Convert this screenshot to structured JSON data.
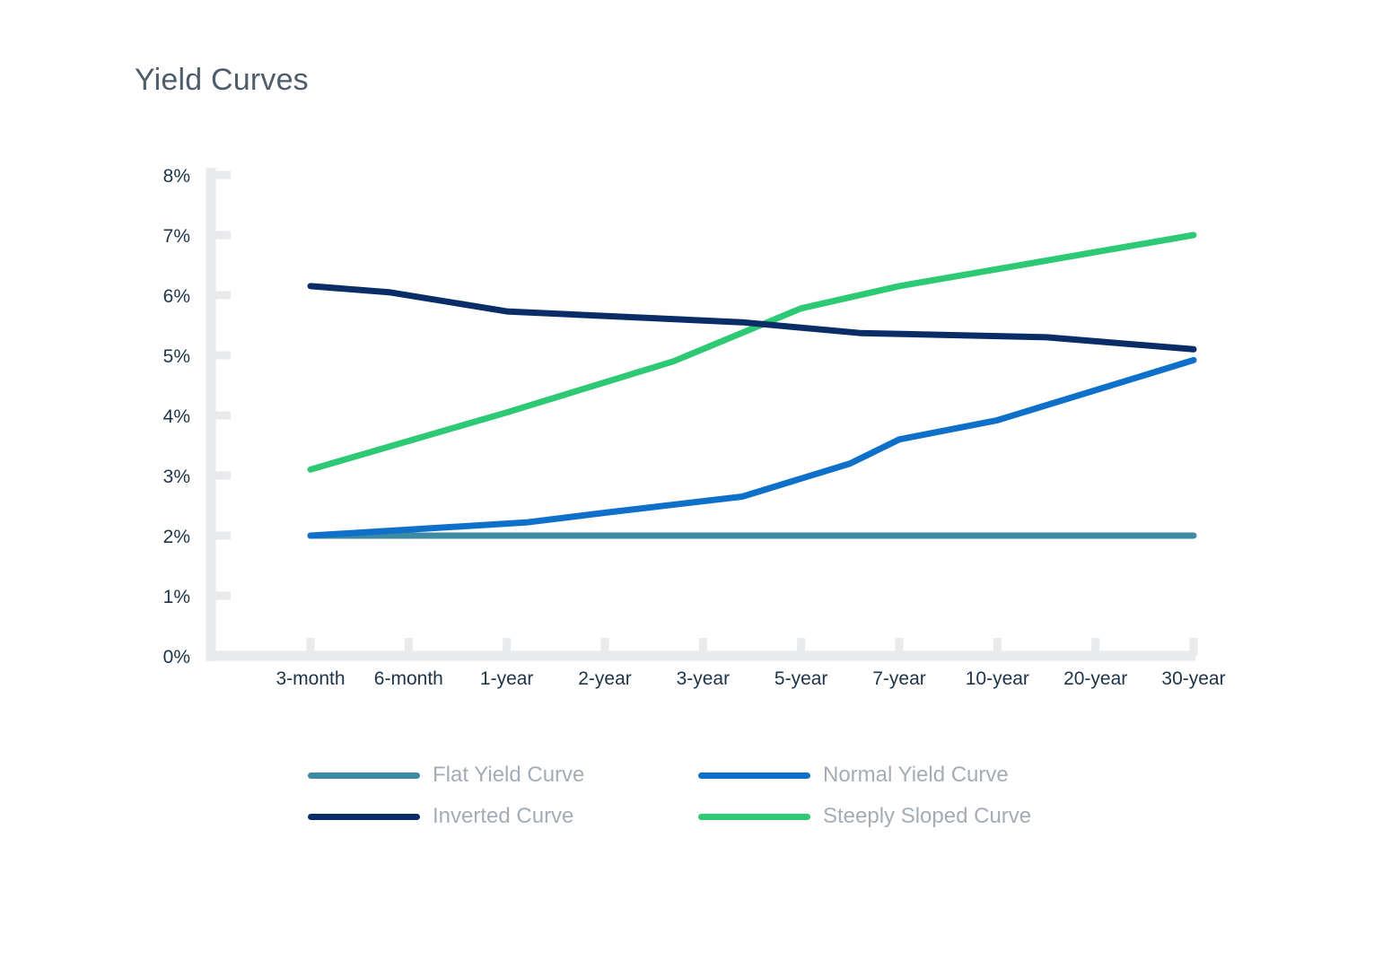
{
  "chart_data": {
    "type": "line",
    "title": "Yield Curves",
    "xlabel": "",
    "ylabel": "",
    "categories": [
      "3-month",
      "6-month",
      "1-year",
      "2-year",
      "3-year",
      "5-year",
      "7-year",
      "10-year",
      "20-year",
      "30-year"
    ],
    "yticks": [
      "0%",
      "1%",
      "2%",
      "3%",
      "4%",
      "5%",
      "6%",
      "7%",
      "8%"
    ],
    "ylim": [
      0,
      8
    ],
    "grid": false,
    "legend_position": "bottom",
    "series": [
      {
        "name": "Flat Yield Curve",
        "color": "#3d8aa3",
        "points": [
          [
            0,
            2.0
          ],
          [
            9,
            2.0
          ]
        ]
      },
      {
        "name": "Normal Yield Curve",
        "color": "#0f70c9",
        "points": [
          [
            0,
            2.0
          ],
          [
            0.8,
            2.08
          ],
          [
            2.2,
            2.22
          ],
          [
            3.0,
            2.38
          ],
          [
            4.4,
            2.65
          ],
          [
            5.5,
            3.2
          ],
          [
            6.0,
            3.6
          ],
          [
            7.0,
            3.92
          ],
          [
            9.0,
            4.92
          ]
        ]
      },
      {
        "name": "Inverted Curve",
        "color": "#0b2d67",
        "points": [
          [
            0,
            6.15
          ],
          [
            0.8,
            6.05
          ],
          [
            2.0,
            5.73
          ],
          [
            4.4,
            5.55
          ],
          [
            5.6,
            5.37
          ],
          [
            7.5,
            5.3
          ],
          [
            9.0,
            5.1
          ]
        ]
      },
      {
        "name": "Steeply Sloped Curve",
        "color": "#2ec974",
        "points": [
          [
            0,
            3.1
          ],
          [
            2.0,
            4.05
          ],
          [
            3.7,
            4.9
          ],
          [
            5.0,
            5.78
          ],
          [
            6.0,
            6.15
          ],
          [
            9.0,
            7.0
          ]
        ]
      }
    ]
  }
}
